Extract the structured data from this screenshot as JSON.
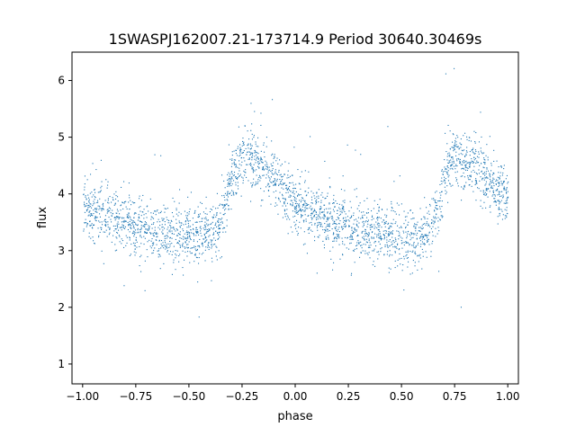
{
  "chart_data": {
    "type": "scatter",
    "title": "1SWASPJ162007.21-173714.9 Period 30640.30469s",
    "xlabel": "phase",
    "ylabel": "flux",
    "xlim": [
      -1.05,
      1.05
    ],
    "ylim": [
      0.65,
      6.5
    ],
    "x_ticks": [
      -1.0,
      -0.75,
      -0.5,
      -0.25,
      0.0,
      0.25,
      0.5,
      0.75,
      1.0
    ],
    "x_tick_labels": [
      "−1.00",
      "−0.75",
      "−0.50",
      "−0.25",
      "0.00",
      "0.25",
      "0.50",
      "0.75",
      "1.00"
    ],
    "y_ticks": [
      1,
      2,
      3,
      4,
      5,
      6
    ],
    "y_tick_labels": [
      "1",
      "2",
      "3",
      "4",
      "5",
      "6"
    ],
    "grid": false,
    "point_color": "#1f77b4",
    "series": [
      {
        "profile_phase": [
          0.0,
          0.05,
          0.1,
          0.15,
          0.2,
          0.25,
          0.3,
          0.35,
          0.4,
          0.45,
          0.5,
          0.55,
          0.6,
          0.65,
          0.7,
          0.75,
          0.8,
          0.85,
          0.9,
          0.95,
          1.0
        ],
        "profile_flux": [
          3.85,
          3.72,
          3.62,
          3.55,
          3.47,
          3.42,
          3.37,
          3.33,
          3.3,
          3.28,
          3.27,
          3.26,
          3.28,
          3.5,
          4.3,
          4.7,
          4.65,
          4.45,
          4.25,
          4.05,
          3.9
        ],
        "scatter_sigma": 0.25,
        "note_symmetric": "light curve repeats with period 1 in phase"
      }
    ]
  }
}
